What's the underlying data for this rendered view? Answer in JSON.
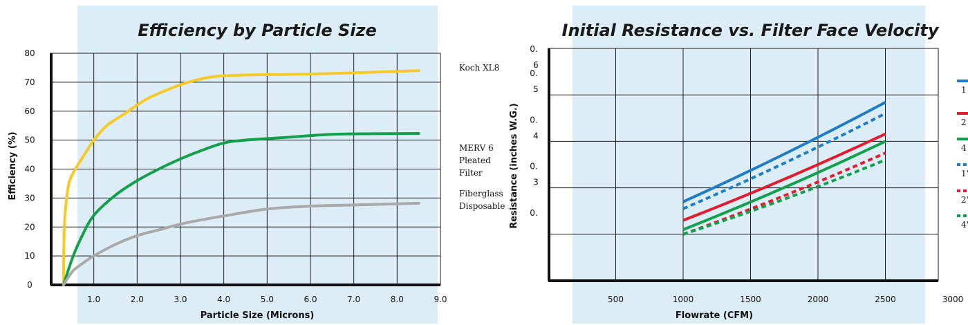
{
  "chart_data": [
    {
      "type": "line",
      "title": "Efficiency by Particle Size",
      "xlabel": "Particle Size (Microns)",
      "ylabel": "Efficiency (%)",
      "xlim": [
        0,
        9.0
      ],
      "ylim": [
        0,
        80
      ],
      "x_ticks": [
        "1.0",
        "2.0",
        "3.0",
        "4.0",
        "5.0",
        "6.0",
        "7.0",
        "8.0",
        "9.0"
      ],
      "y_ticks": [
        "0",
        "10",
        "20",
        "30",
        "40",
        "50",
        "60",
        "70",
        "80"
      ],
      "grid": true,
      "legend_position": "right",
      "series": [
        {
          "name": "Koch XL8",
          "color": "#f7c928",
          "x": [
            0.3,
            0.32,
            0.4,
            0.5,
            0.7,
            1.0,
            1.3,
            1.7,
            2.2,
            2.8,
            3.3,
            3.8,
            4.5,
            5.5,
            6.5,
            7.5,
            8.5
          ],
          "y": [
            0,
            20,
            33,
            38,
            43,
            50,
            55,
            59,
            64,
            68,
            70.5,
            72,
            72.5,
            72.7,
            73,
            73.5,
            74
          ]
        },
        {
          "name": "MERV 6 Pleated Filter",
          "color": "#12a04a",
          "x": [
            0.3,
            0.5,
            0.7,
            1.0,
            1.5,
            2.0,
            2.5,
            3.0,
            3.5,
            4.0,
            4.5,
            5.5,
            6.5,
            7.5,
            8.5
          ],
          "y": [
            0,
            9,
            16,
            24,
            31,
            36,
            40,
            43.5,
            46.5,
            49,
            50,
            51,
            52,
            52.2,
            52.3
          ]
        },
        {
          "name": "Fiberglass Disposable",
          "color": "#a9a9a9",
          "x": [
            0.3,
            0.5,
            0.7,
            1.0,
            1.5,
            2.0,
            2.5,
            3.0,
            3.5,
            4.0,
            5.0,
            6.0,
            7.0,
            8.0,
            8.5
          ],
          "y": [
            0,
            4.5,
            7,
            10,
            14,
            17,
            19,
            21,
            22.5,
            23.8,
            26.2,
            27.2,
            27.6,
            28,
            28.2
          ]
        }
      ]
    },
    {
      "type": "line",
      "title": "Initial Resistance vs. Filter Face Velocity",
      "xlabel": "Flowrate (CFM)",
      "ylabel": "Resistance (inches W.G.)",
      "xlim": [
        0,
        3000
      ],
      "ylim": [
        0.1,
        0.6
      ],
      "x_ticks": [
        "500",
        "1000",
        "1500",
        "2000",
        "2500",
        "3000"
      ],
      "y_ticks": [
        {
          "line1": "0.",
          "line2": "6"
        },
        {
          "line1": "0.",
          "line2": "5"
        },
        {
          "line1": "0.",
          "line2": "4"
        },
        {
          "line1": "0.",
          "line2": "3"
        },
        {
          "line1": "0.",
          "line2": ""
        }
      ],
      "grid": true,
      "legend_position": "right",
      "legend_labels": [
        "1",
        "2",
        "4",
        "1'",
        "2'",
        "4'"
      ],
      "series": [
        {
          "color": "#1e7dc4",
          "dash": false,
          "x": [
            1000,
            2500
          ],
          "y": [
            0.27,
            0.484
          ]
        },
        {
          "color": "#e41b2c",
          "dash": false,
          "x": [
            1000,
            2500
          ],
          "y": [
            0.23,
            0.416
          ]
        },
        {
          "color": "#12a04a",
          "dash": false,
          "x": [
            1000,
            2500
          ],
          "y": [
            0.21,
            0.4
          ]
        },
        {
          "color": "#1e7dc4",
          "dash": true,
          "x": [
            1000,
            2500
          ],
          "y": [
            0.255,
            0.46
          ]
        },
        {
          "color": "#e41b2c",
          "dash": true,
          "x": [
            1000,
            2500
          ],
          "y": [
            0.2,
            0.375
          ]
        },
        {
          "color": "#12a04a",
          "dash": true,
          "x": [
            1000,
            2500
          ],
          "y": [
            0.2,
            0.36
          ]
        }
      ]
    }
  ]
}
